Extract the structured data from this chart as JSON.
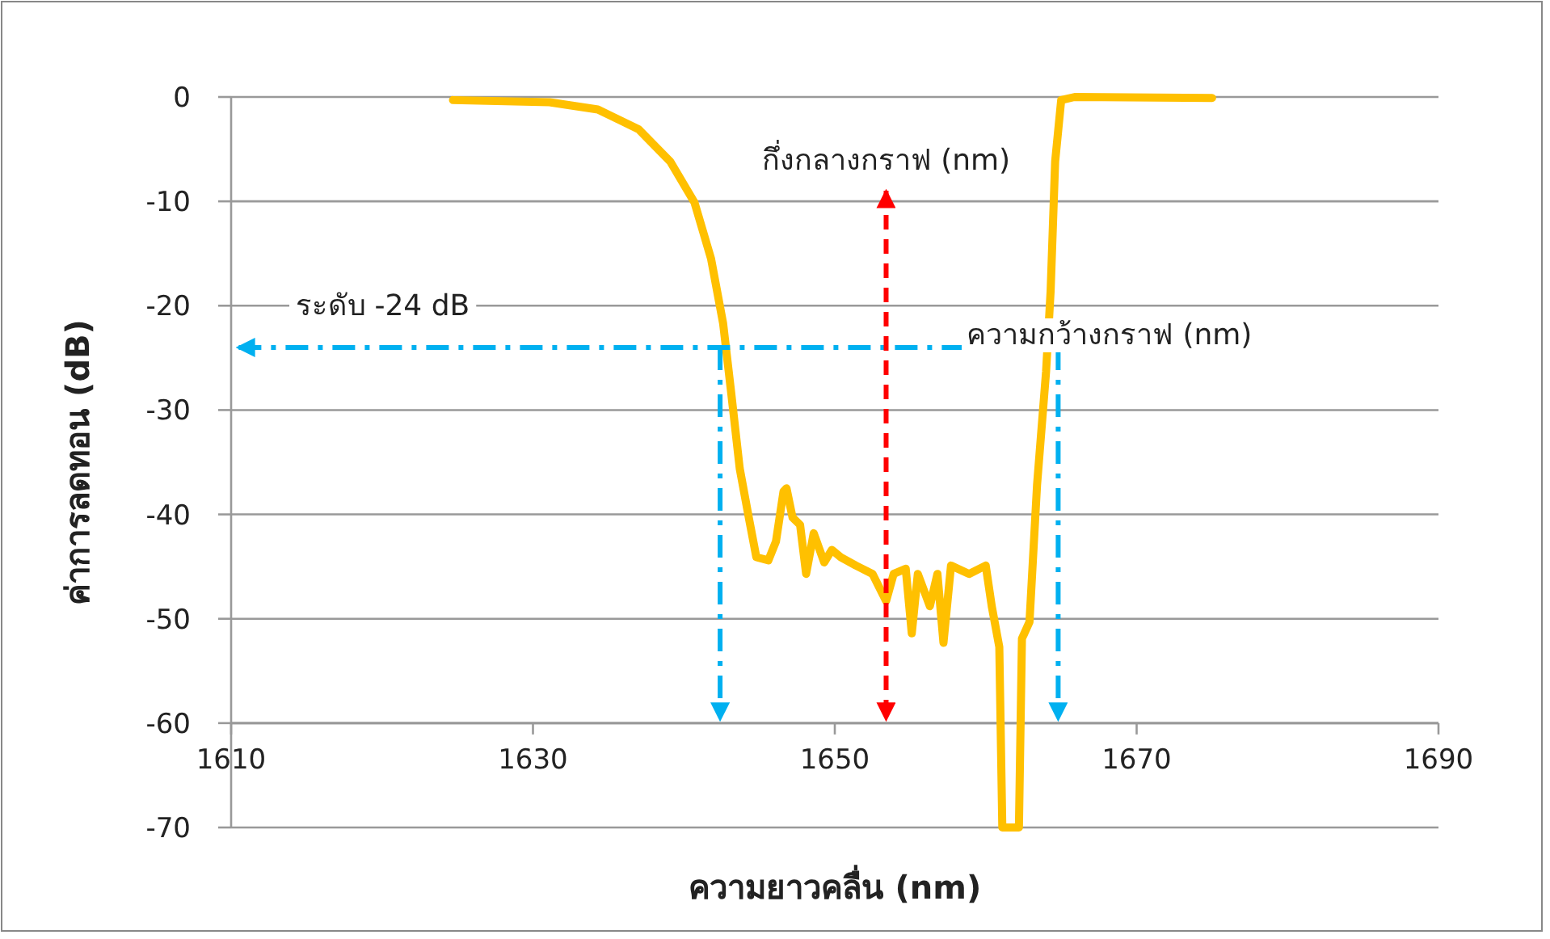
{
  "chart_data": {
    "type": "line",
    "xlabel": "ความยาวคลื่น (nm)",
    "ylabel": "ค่าการลดทอน (dB)",
    "xlim": [
      1610,
      1690
    ],
    "xticks": [
      1610,
      1630,
      1650,
      1670,
      1690
    ],
    "ylim": [
      -70,
      0
    ],
    "yticks": [
      0,
      -10,
      -20,
      -30,
      -40,
      -50,
      -60,
      -70
    ],
    "grid": "y",
    "marker": "none",
    "line_style": "solid",
    "series": [
      {
        "color": "#ffc000",
        "x": [
          1624.7,
          1631.1,
          1634.3,
          1637.0,
          1639.1,
          1640.7,
          1641.8,
          1642.6,
          1643.1,
          1643.7,
          1644.3,
          1644.8,
          1645.6,
          1646.1,
          1646.6,
          1646.8,
          1647.2,
          1647.7,
          1648.1,
          1648.6,
          1649.3,
          1649.8,
          1650.4,
          1651.4,
          1652.5,
          1653.4,
          1653.9,
          1654.7,
          1655.1,
          1655.5,
          1656.3,
          1656.8,
          1657.2,
          1657.7,
          1658.9,
          1660.0,
          1660.4,
          1660.9,
          1661.1,
          1662.2,
          1662.4,
          1662.9,
          1663.4,
          1664.0,
          1664.3,
          1664.6,
          1665.0,
          1665.9,
          1675.0
        ],
        "values": [
          -0.3,
          -0.5,
          -1.2,
          -3.1,
          -6.2,
          -10.1,
          -15.5,
          -21.7,
          -27.9,
          -35.6,
          -40.3,
          -44.1,
          -44.4,
          -42.6,
          -37.8,
          -37.5,
          -40.3,
          -41.0,
          -45.7,
          -41.8,
          -44.6,
          -43.4,
          -44.1,
          -44.9,
          -45.7,
          -48.3,
          -45.7,
          -45.2,
          -51.4,
          -45.7,
          -48.8,
          -45.7,
          -52.3,
          -44.9,
          -45.7,
          -44.9,
          -48.8,
          -52.7,
          -70,
          -70,
          -51.9,
          -50.3,
          -37.2,
          -26.3,
          -18.6,
          -6.2,
          -0.3,
          0,
          -0.1
        ]
      }
    ],
    "ref_lines": [
      {
        "axis": "y",
        "value": -24,
        "label": "ระดับ -24 dB",
        "color": "#00b0f0",
        "line_style": "dashdot"
      },
      {
        "axis": "x",
        "value": 1642.4,
        "label": null,
        "color": "#00b0f0",
        "line_style": "dashdot"
      },
      {
        "axis": "x",
        "value": 1664.8,
        "label": null,
        "color": "#00b0f0",
        "line_style": "dashdot"
      },
      {
        "axis": "x",
        "value": 1653.4,
        "label": "กึ่งกลางกราฟ (nm)",
        "color": "#ff0000",
        "line_style": "dashed"
      }
    ],
    "annotations": [
      "ความกว้างกราฟ (nm)"
    ]
  }
}
